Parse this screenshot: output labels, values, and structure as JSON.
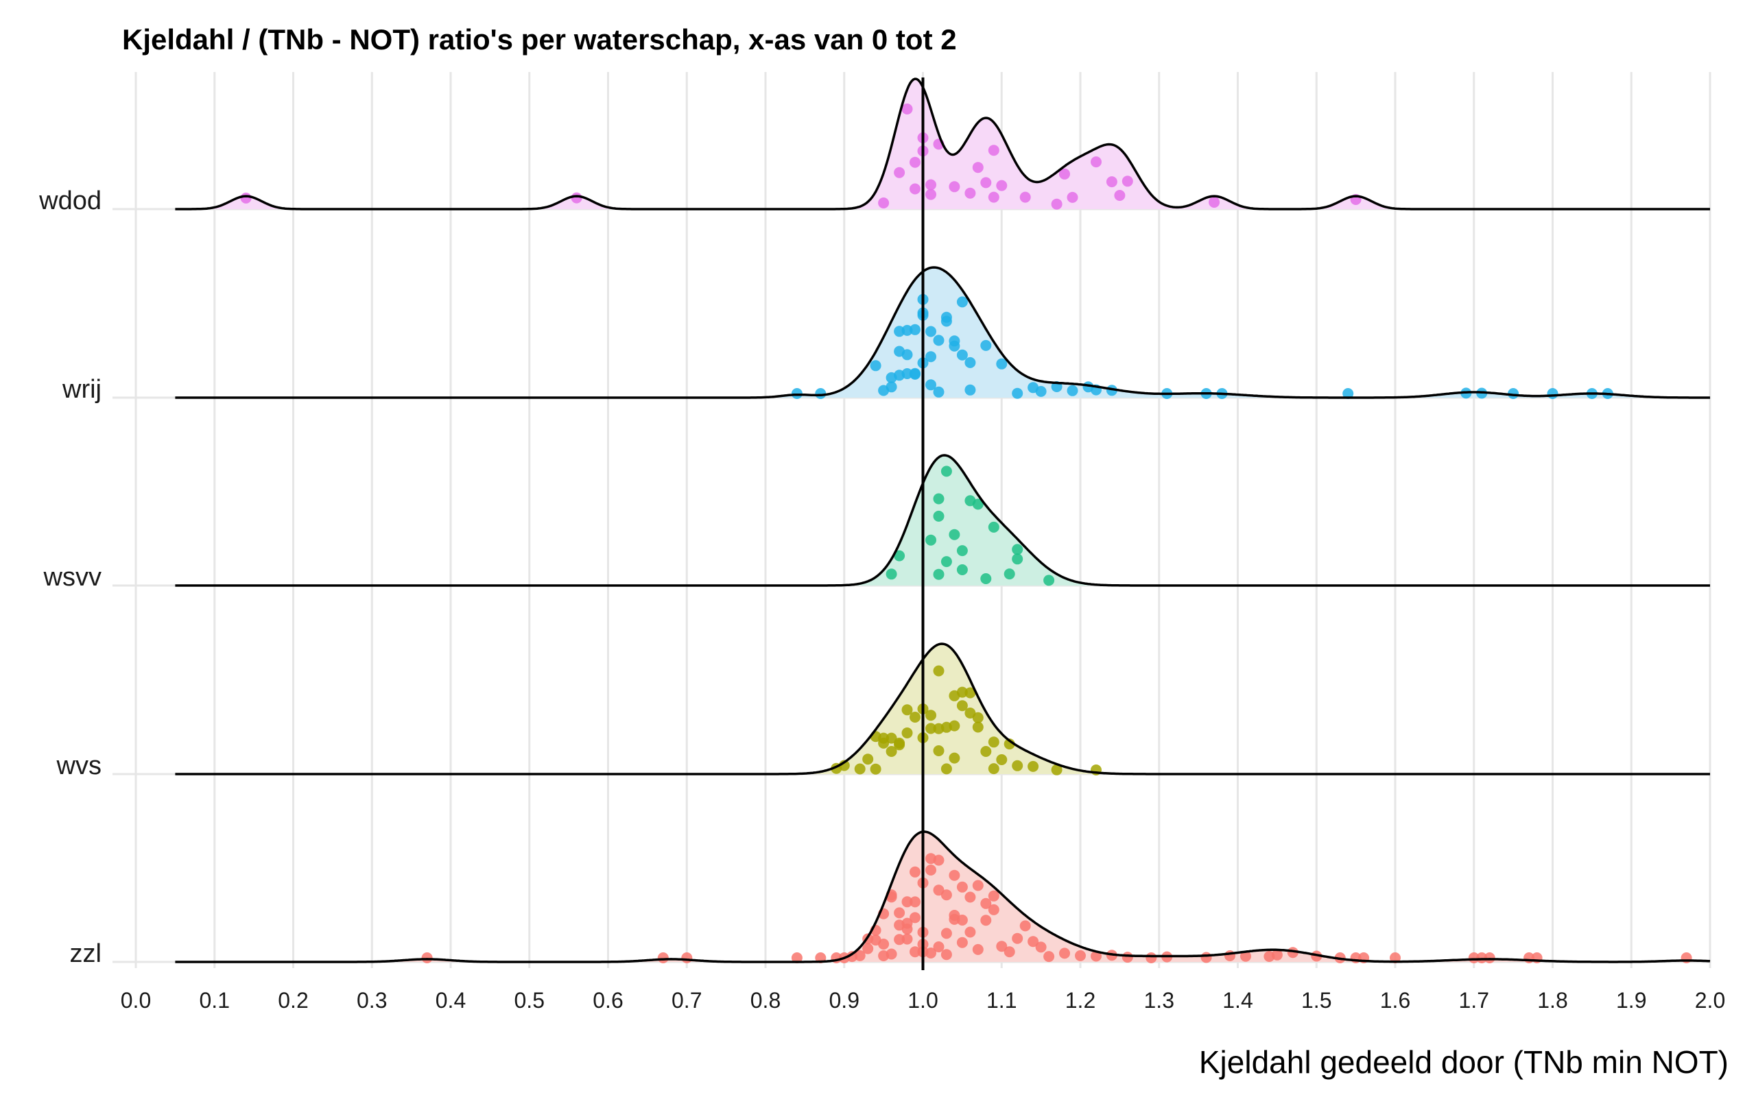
{
  "chart_data": {
    "type": "ridgeline",
    "title": "Kjeldahl / (TNb - NOT) ratio's per waterschap, x-as van 0 tot 2",
    "xlabel": "Kjeldahl gedeeld door (TNb min NOT)",
    "ylabel": "",
    "xlim": [
      0,
      2
    ],
    "x_ticks": [
      "0.0",
      "0.1",
      "0.2",
      "0.3",
      "0.4",
      "0.5",
      "0.6",
      "0.7",
      "0.8",
      "0.9",
      "1.0",
      "1.1",
      "1.2",
      "1.3",
      "1.4",
      "1.5",
      "1.6",
      "1.7",
      "1.8",
      "1.9",
      "2.0"
    ],
    "reference_line_x": 1.0,
    "grid": true,
    "legend": "none",
    "series": [
      {
        "name": "wdod",
        "color": "#e46ee9",
        "fill": "#f7d9f8",
        "density_peaks": [
          [
            0.14,
            0.06,
            0.02
          ],
          [
            0.56,
            0.06,
            0.02
          ],
          [
            0.99,
            0.6,
            0.025
          ],
          [
            1.08,
            0.42,
            0.03
          ],
          [
            1.2,
            0.22,
            0.04
          ],
          [
            1.25,
            0.18,
            0.025
          ],
          [
            1.37,
            0.06,
            0.02
          ],
          [
            1.55,
            0.06,
            0.02
          ]
        ],
        "points": [
          0.14,
          0.56,
          0.95,
          0.97,
          0.98,
          0.99,
          0.99,
          1.0,
          1.0,
          1.01,
          1.01,
          1.02,
          1.04,
          1.06,
          1.07,
          1.08,
          1.09,
          1.09,
          1.1,
          1.13,
          1.17,
          1.18,
          1.19,
          1.22,
          1.24,
          1.25,
          1.26,
          1.37,
          1.55
        ]
      },
      {
        "name": "wrij",
        "color": "#21b0e8",
        "fill": "#cfeaf7",
        "density_peaks": [
          [
            0.84,
            0.02,
            0.02
          ],
          [
            1.0,
            0.8,
            0.045
          ],
          [
            1.06,
            0.35,
            0.04
          ],
          [
            1.18,
            0.1,
            0.06
          ],
          [
            1.36,
            0.03,
            0.05
          ],
          [
            1.7,
            0.04,
            0.04
          ],
          [
            1.85,
            0.03,
            0.04
          ]
        ],
        "points": [
          0.84,
          0.87,
          0.94,
          0.95,
          0.96,
          0.96,
          0.97,
          0.97,
          0.97,
          0.98,
          0.98,
          0.98,
          0.99,
          0.99,
          0.99,
          1.0,
          1.0,
          1.0,
          1.0,
          1.01,
          1.01,
          1.01,
          1.02,
          1.02,
          1.03,
          1.03,
          1.04,
          1.04,
          1.05,
          1.05,
          1.06,
          1.06,
          1.08,
          1.1,
          1.12,
          1.14,
          1.15,
          1.17,
          1.19,
          1.21,
          1.22,
          1.24,
          1.31,
          1.36,
          1.38,
          1.54,
          1.69,
          1.71,
          1.75,
          1.8,
          1.85,
          1.87
        ]
      },
      {
        "name": "wsvv",
        "color": "#1fbf86",
        "fill": "#cdefe2",
        "density_peaks": [
          [
            1.02,
            0.8,
            0.035
          ],
          [
            1.09,
            0.4,
            0.045
          ]
        ],
        "points": [
          0.96,
          0.97,
          1.01,
          1.02,
          1.02,
          1.02,
          1.03,
          1.03,
          1.04,
          1.05,
          1.05,
          1.06,
          1.07,
          1.08,
          1.09,
          1.11,
          1.12,
          1.12,
          1.16
        ]
      },
      {
        "name": "wvs",
        "color": "#a3a500",
        "fill": "#ebecc4",
        "density_peaks": [
          [
            0.97,
            0.45,
            0.04
          ],
          [
            1.03,
            0.85,
            0.035
          ],
          [
            1.1,
            0.22,
            0.05
          ]
        ],
        "points": [
          0.89,
          0.9,
          0.92,
          0.93,
          0.94,
          0.94,
          0.95,
          0.95,
          0.96,
          0.96,
          0.97,
          0.97,
          0.98,
          0.98,
          0.99,
          1.0,
          1.0,
          1.01,
          1.01,
          1.02,
          1.02,
          1.02,
          1.03,
          1.03,
          1.04,
          1.04,
          1.04,
          1.05,
          1.05,
          1.06,
          1.06,
          1.07,
          1.07,
          1.08,
          1.09,
          1.09,
          1.1,
          1.11,
          1.12,
          1.14,
          1.17,
          1.22
        ]
      },
      {
        "name": "zzl",
        "color": "#f8766d",
        "fill": "#fad6d3",
        "density_peaks": [
          [
            0.37,
            0.02,
            0.03
          ],
          [
            0.68,
            0.02,
            0.03
          ],
          [
            0.99,
            0.75,
            0.035
          ],
          [
            1.06,
            0.52,
            0.045
          ],
          [
            1.14,
            0.18,
            0.05
          ],
          [
            1.3,
            0.04,
            0.08
          ],
          [
            1.45,
            0.08,
            0.05
          ],
          [
            1.72,
            0.02,
            0.05
          ],
          [
            1.97,
            0.01,
            0.03
          ]
        ],
        "points": [
          0.37,
          0.67,
          0.7,
          0.84,
          0.87,
          0.89,
          0.9,
          0.91,
          0.92,
          0.93,
          0.93,
          0.94,
          0.94,
          0.95,
          0.95,
          0.95,
          0.96,
          0.96,
          0.96,
          0.97,
          0.97,
          0.97,
          0.98,
          0.98,
          0.98,
          0.98,
          0.99,
          0.99,
          0.99,
          0.99,
          1.0,
          1.0,
          1.0,
          1.0,
          1.01,
          1.01,
          1.01,
          1.02,
          1.02,
          1.02,
          1.03,
          1.03,
          1.03,
          1.04,
          1.04,
          1.04,
          1.05,
          1.05,
          1.05,
          1.06,
          1.06,
          1.07,
          1.07,
          1.08,
          1.08,
          1.09,
          1.09,
          1.1,
          1.11,
          1.12,
          1.13,
          1.14,
          1.15,
          1.16,
          1.18,
          1.2,
          1.22,
          1.24,
          1.26,
          1.29,
          1.31,
          1.36,
          1.39,
          1.41,
          1.44,
          1.45,
          1.47,
          1.5,
          1.53,
          1.55,
          1.56,
          1.6,
          1.7,
          1.71,
          1.72,
          1.77,
          1.78,
          1.97
        ]
      }
    ]
  }
}
